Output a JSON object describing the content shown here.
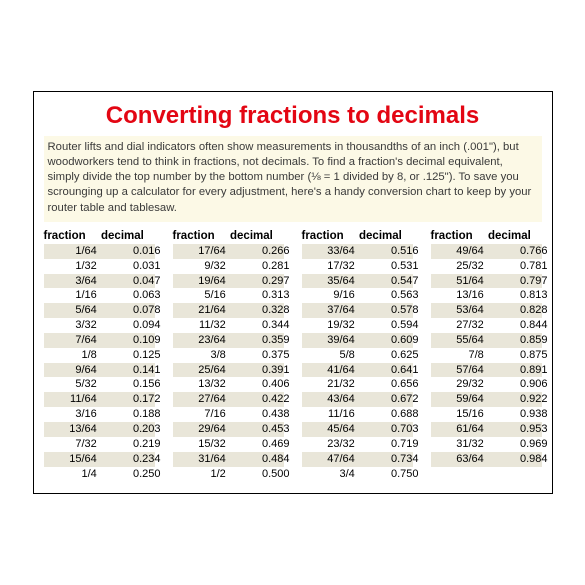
{
  "title": "Converting fractions to decimals",
  "intro": "Router lifts and dial indicators often show measurements in thousandths of an inch (.001\"), but woodworkers tend to think in fractions, not decimals. To find a fraction's decimal equivalent, simply divide the top number by the bottom number (⅛ = 1 divided by 8, or .125\"). To save you scrounging up a calculator for every adjustment, here's a handy conversion chart to keep by your router table and tablesaw.",
  "headers": {
    "fraction": "fraction",
    "decimal": "decimal"
  },
  "colors": {
    "title": "#e30613",
    "intro_bg": "#fcf9e6",
    "shade": "#e9e6d9",
    "border": "#000000",
    "text": "#000000"
  },
  "columns": [
    {
      "rows": [
        {
          "f": "1/64",
          "d": "0.016",
          "s": true
        },
        {
          "f": "1/32",
          "d": "0.031",
          "s": false
        },
        {
          "f": "3/64",
          "d": "0.047",
          "s": true
        },
        {
          "f": "1/16",
          "d": "0.063",
          "s": false
        },
        {
          "f": "5/64",
          "d": "0.078",
          "s": true
        },
        {
          "f": "3/32",
          "d": "0.094",
          "s": false
        },
        {
          "f": "7/64",
          "d": "0.109",
          "s": true
        },
        {
          "f": "1/8",
          "d": "0.125",
          "s": false
        },
        {
          "f": "9/64",
          "d": "0.141",
          "s": true
        },
        {
          "f": "5/32",
          "d": "0.156",
          "s": false
        },
        {
          "f": "11/64",
          "d": "0.172",
          "s": true
        },
        {
          "f": "3/16",
          "d": "0.188",
          "s": false
        },
        {
          "f": "13/64",
          "d": "0.203",
          "s": true
        },
        {
          "f": "7/32",
          "d": "0.219",
          "s": false
        },
        {
          "f": "15/64",
          "d": "0.234",
          "s": true
        },
        {
          "f": "1/4",
          "d": "0.250",
          "s": false
        }
      ]
    },
    {
      "rows": [
        {
          "f": "17/64",
          "d": "0.266",
          "s": true
        },
        {
          "f": "9/32",
          "d": "0.281",
          "s": false
        },
        {
          "f": "19/64",
          "d": "0.297",
          "s": true
        },
        {
          "f": "5/16",
          "d": "0.313",
          "s": false
        },
        {
          "f": "21/64",
          "d": "0.328",
          "s": true
        },
        {
          "f": "11/32",
          "d": "0.344",
          "s": false
        },
        {
          "f": "23/64",
          "d": "0.359",
          "s": true
        },
        {
          "f": "3/8",
          "d": "0.375",
          "s": false
        },
        {
          "f": "25/64",
          "d": "0.391",
          "s": true
        },
        {
          "f": "13/32",
          "d": "0.406",
          "s": false
        },
        {
          "f": "27/64",
          "d": "0.422",
          "s": true
        },
        {
          "f": "7/16",
          "d": "0.438",
          "s": false
        },
        {
          "f": "29/64",
          "d": "0.453",
          "s": true
        },
        {
          "f": "15/32",
          "d": "0.469",
          "s": false
        },
        {
          "f": "31/64",
          "d": "0.484",
          "s": true
        },
        {
          "f": "1/2",
          "d": "0.500",
          "s": false
        }
      ]
    },
    {
      "rows": [
        {
          "f": "33/64",
          "d": "0.516",
          "s": true
        },
        {
          "f": "17/32",
          "d": "0.531",
          "s": false
        },
        {
          "f": "35/64",
          "d": "0.547",
          "s": true
        },
        {
          "f": "9/16",
          "d": "0.563",
          "s": false
        },
        {
          "f": "37/64",
          "d": "0.578",
          "s": true
        },
        {
          "f": "19/32",
          "d": "0.594",
          "s": false
        },
        {
          "f": "39/64",
          "d": "0.609",
          "s": true
        },
        {
          "f": "5/8",
          "d": "0.625",
          "s": false
        },
        {
          "f": "41/64",
          "d": "0.641",
          "s": true
        },
        {
          "f": "21/32",
          "d": "0.656",
          "s": false
        },
        {
          "f": "43/64",
          "d": "0.672",
          "s": true
        },
        {
          "f": "11/16",
          "d": "0.688",
          "s": false
        },
        {
          "f": "45/64",
          "d": "0.703",
          "s": true
        },
        {
          "f": "23/32",
          "d": "0.719",
          "s": false
        },
        {
          "f": "47/64",
          "d": "0.734",
          "s": true
        },
        {
          "f": "3/4",
          "d": "0.750",
          "s": false
        }
      ]
    },
    {
      "rows": [
        {
          "f": "49/64",
          "d": "0.766",
          "s": true
        },
        {
          "f": "25/32",
          "d": "0.781",
          "s": false
        },
        {
          "f": "51/64",
          "d": "0.797",
          "s": true
        },
        {
          "f": "13/16",
          "d": "0.813",
          "s": false
        },
        {
          "f": "53/64",
          "d": "0.828",
          "s": true
        },
        {
          "f": "27/32",
          "d": "0.844",
          "s": false
        },
        {
          "f": "55/64",
          "d": "0.859",
          "s": true
        },
        {
          "f": "7/8",
          "d": "0.875",
          "s": false
        },
        {
          "f": "57/64",
          "d": "0.891",
          "s": true
        },
        {
          "f": "29/32",
          "d": "0.906",
          "s": false
        },
        {
          "f": "59/64",
          "d": "0.922",
          "s": true
        },
        {
          "f": "15/16",
          "d": "0.938",
          "s": false
        },
        {
          "f": "61/64",
          "d": "0.953",
          "s": true
        },
        {
          "f": "31/32",
          "d": "0.969",
          "s": false
        },
        {
          "f": "63/64",
          "d": "0.984",
          "s": true
        }
      ]
    }
  ]
}
